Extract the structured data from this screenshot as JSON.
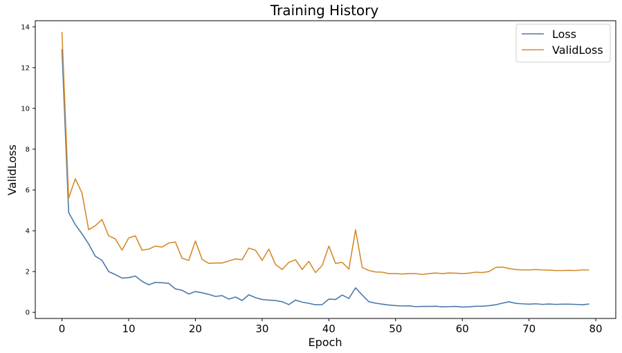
{
  "chart_data": {
    "type": "line",
    "title": "Training History",
    "xlabel": "Epoch",
    "ylabel": "ValidLoss",
    "xlim": [
      -4,
      83
    ],
    "ylim": [
      -0.3,
      14.3
    ],
    "xticks": [
      0,
      10,
      20,
      30,
      40,
      50,
      60,
      70,
      80
    ],
    "yticks": [
      0,
      2,
      4,
      6,
      8,
      10,
      12,
      14
    ],
    "legend_position": "top-right",
    "grid": false,
    "x": [
      0,
      1,
      2,
      3,
      4,
      5,
      6,
      7,
      8,
      9,
      10,
      11,
      12,
      13,
      14,
      15,
      16,
      17,
      18,
      19,
      20,
      21,
      22,
      23,
      24,
      25,
      26,
      27,
      28,
      29,
      30,
      31,
      32,
      33,
      34,
      35,
      36,
      37,
      38,
      39,
      40,
      41,
      42,
      43,
      44,
      45,
      46,
      47,
      48,
      49,
      50,
      51,
      52,
      53,
      54,
      55,
      56,
      57,
      58,
      59,
      60,
      61,
      62,
      63,
      64,
      65,
      66,
      67,
      68,
      69,
      70,
      71,
      72,
      73,
      74,
      75,
      76,
      77,
      78,
      79
    ],
    "series": [
      {
        "name": "Loss",
        "color": "#4a78a8",
        "values": [
          12.9,
          4.9,
          4.3,
          3.85,
          3.35,
          2.75,
          2.55,
          2.0,
          1.85,
          1.68,
          1.7,
          1.78,
          1.52,
          1.35,
          1.47,
          1.45,
          1.42,
          1.15,
          1.08,
          0.9,
          1.02,
          0.96,
          0.88,
          0.78,
          0.82,
          0.65,
          0.75,
          0.58,
          0.86,
          0.72,
          0.63,
          0.6,
          0.58,
          0.52,
          0.38,
          0.6,
          0.5,
          0.44,
          0.37,
          0.38,
          0.65,
          0.63,
          0.85,
          0.68,
          1.2,
          0.85,
          0.52,
          0.45,
          0.4,
          0.36,
          0.33,
          0.31,
          0.32,
          0.28,
          0.29,
          0.29,
          0.3,
          0.27,
          0.28,
          0.29,
          0.26,
          0.27,
          0.3,
          0.3,
          0.33,
          0.37,
          0.45,
          0.52,
          0.44,
          0.42,
          0.4,
          0.42,
          0.39,
          0.41,
          0.39,
          0.4,
          0.4,
          0.39,
          0.37,
          0.41
        ]
      },
      {
        "name": "ValidLoss",
        "color": "#d58a2b",
        "values": [
          13.75,
          5.6,
          6.55,
          5.85,
          4.05,
          4.25,
          4.55,
          3.75,
          3.6,
          3.05,
          3.65,
          3.75,
          3.05,
          3.1,
          3.25,
          3.2,
          3.4,
          3.45,
          2.65,
          2.55,
          3.5,
          2.6,
          2.4,
          2.42,
          2.42,
          2.52,
          2.62,
          2.58,
          3.15,
          3.05,
          2.55,
          3.1,
          2.35,
          2.1,
          2.45,
          2.58,
          2.1,
          2.5,
          1.95,
          2.3,
          3.25,
          2.4,
          2.45,
          2.12,
          4.05,
          2.2,
          2.05,
          1.98,
          1.97,
          1.9,
          1.9,
          1.88,
          1.9,
          1.9,
          1.86,
          1.9,
          1.93,
          1.9,
          1.93,
          1.92,
          1.9,
          1.92,
          1.97,
          1.95,
          2.0,
          2.2,
          2.22,
          2.15,
          2.1,
          2.08,
          2.08,
          2.1,
          2.08,
          2.07,
          2.05,
          2.05,
          2.06,
          2.05,
          2.08,
          2.08
        ]
      }
    ]
  }
}
